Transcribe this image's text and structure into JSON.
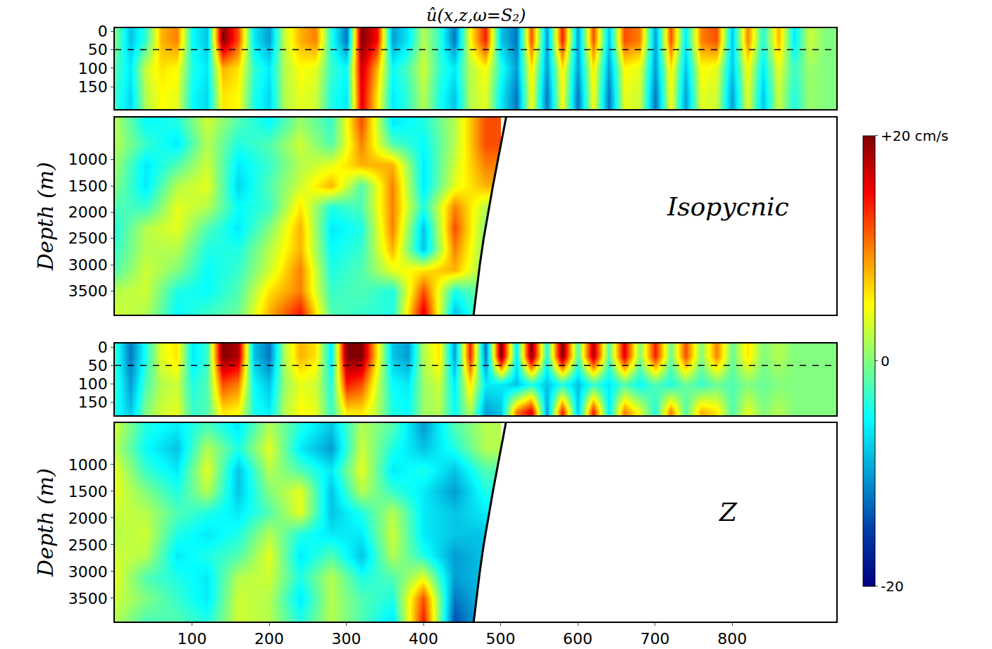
{
  "chart_data": {
    "type": "heatmap",
    "title": "û(x,z,ω=S₂)",
    "xlim": [
      0,
      935
    ],
    "xticks": [
      100,
      200,
      300,
      400,
      500,
      600,
      700,
      800
    ],
    "colorbar": {
      "range": [
        -20,
        20
      ],
      "ticks": [
        {
          "value": 20,
          "label": "+20 cm/s"
        },
        0,
        -20
      ]
    },
    "bathymetry": {
      "x": [
        507,
        503,
        497,
        490,
        484,
        478,
        473,
        469,
        465
      ],
      "depth": [
        200,
        500,
        1000,
        1500,
        2000,
        2500,
        3000,
        3500,
        3950
      ]
    },
    "panels": [
      {
        "ylim": [
          210,
          -8
        ],
        "yticks": [
          0,
          50,
          100,
          150
        ],
        "reference_depth": 50,
        "x": [
          0,
          20,
          40,
          60,
          80,
          100,
          120,
          140,
          160,
          180,
          200,
          220,
          240,
          260,
          280,
          300,
          320,
          340,
          360,
          380,
          400,
          420,
          440,
          460,
          480,
          500,
          520,
          540,
          560,
          580,
          600,
          620,
          640,
          660,
          680,
          700,
          720,
          740,
          760,
          780,
          800,
          820,
          840,
          860,
          880,
          900,
          920,
          940
        ],
        "y": [
          25,
          100,
          175
        ],
        "z": [
          [
            0,
            -8,
            -3,
            8,
            10,
            -5,
            -8,
            20,
            12,
            -6,
            -10,
            3,
            8,
            10,
            -4,
            -12,
            20,
            15,
            -10,
            -6,
            2,
            -3,
            -12,
            5,
            14,
            -8,
            -12,
            12,
            -10,
            14,
            -10,
            12,
            -8,
            12,
            10,
            -10,
            12,
            -6,
            10,
            12,
            -8,
            10,
            -4,
            8,
            -6,
            3,
            0,
            0
          ],
          [
            -2,
            -6,
            3,
            6,
            5,
            -4,
            -6,
            8,
            6,
            -3,
            -6,
            2,
            5,
            4,
            -3,
            -5,
            17,
            8,
            -5,
            -2,
            3,
            -3,
            -6,
            2,
            5,
            -4,
            -10,
            6,
            -10,
            6,
            -10,
            6,
            -10,
            5,
            4,
            -10,
            6,
            -8,
            5,
            4,
            -8,
            5,
            -6,
            4,
            -3,
            1,
            0,
            0
          ],
          [
            -3,
            -7,
            2,
            5,
            4,
            -5,
            -7,
            6,
            5,
            -4,
            -7,
            2,
            4,
            3,
            -4,
            -6,
            16,
            6,
            -6,
            -3,
            2,
            -4,
            -8,
            2,
            4,
            -6,
            -12,
            5,
            -12,
            5,
            -12,
            5,
            -12,
            4,
            3,
            -12,
            5,
            -10,
            4,
            3,
            -10,
            4,
            -8,
            3,
            -4,
            1,
            0,
            0
          ]
        ]
      },
      {
        "ylabel": "Depth (m)",
        "label": "Isopycnic",
        "ylim": [
          3950,
          200
        ],
        "yticks": [
          1000,
          1500,
          2000,
          2500,
          3000,
          3500
        ],
        "x": [
          0,
          40,
          80,
          120,
          160,
          200,
          240,
          280,
          320,
          360,
          400,
          440,
          480
        ],
        "y": [
          300,
          700,
          1100,
          1500,
          1900,
          2300,
          2700,
          3100,
          3500,
          3900
        ],
        "z": [
          [
            2,
            -5,
            -4,
            3,
            -2,
            -5,
            1,
            -3,
            12,
            -6,
            -4,
            2,
            12
          ],
          [
            2,
            -3,
            -6,
            2,
            -4,
            -2,
            3,
            -2,
            10,
            -2,
            -5,
            2,
            12
          ],
          [
            1,
            -6,
            -2,
            3,
            -6,
            -3,
            2,
            4,
            8,
            8,
            -6,
            3,
            10
          ],
          [
            0,
            -6,
            2,
            4,
            -7,
            -2,
            3,
            8,
            -2,
            10,
            -6,
            4,
            8
          ],
          [
            -2,
            -3,
            4,
            2,
            -5,
            -3,
            6,
            -4,
            -2,
            10,
            -4,
            10,
            2
          ],
          [
            -4,
            2,
            4,
            -2,
            -6,
            0,
            8,
            -6,
            -4,
            10,
            -8,
            12,
            0
          ],
          [
            -3,
            2,
            2,
            -4,
            -4,
            2,
            8,
            -5,
            -3,
            8,
            -8,
            10,
            0
          ],
          [
            -2,
            3,
            0,
            -5,
            -3,
            3,
            10,
            -4,
            -2,
            4,
            6,
            8,
            0
          ],
          [
            2,
            3,
            -4,
            -5,
            -2,
            6,
            10,
            -3,
            -2,
            -4,
            12,
            -4,
            0
          ],
          [
            3,
            2,
            -5,
            -3,
            -1,
            8,
            14,
            -2,
            -3,
            -4,
            16,
            -8,
            0
          ]
        ]
      },
      {
        "ylim": [
          185,
          -10
        ],
        "yticks": [
          0,
          50,
          100,
          150
        ],
        "reference_depth": 50,
        "x": [
          0,
          20,
          40,
          60,
          80,
          100,
          120,
          140,
          160,
          180,
          200,
          220,
          240,
          260,
          280,
          300,
          320,
          340,
          360,
          380,
          400,
          420,
          440,
          460,
          480,
          500,
          520,
          540,
          560,
          580,
          600,
          620,
          640,
          660,
          680,
          700,
          720,
          740,
          760,
          780,
          800,
          820,
          840,
          860,
          880,
          900,
          920,
          940
        ],
        "y": [
          25,
          100,
          175
        ],
        "z": [
          [
            -3,
            -12,
            -4,
            4,
            6,
            -6,
            -3,
            20,
            18,
            -8,
            -12,
            2,
            8,
            6,
            -6,
            20,
            20,
            6,
            -8,
            -10,
            2,
            6,
            -10,
            14,
            -12,
            20,
            -6,
            20,
            -4,
            20,
            -2,
            18,
            -2,
            16,
            0,
            14,
            -1,
            12,
            0,
            10,
            -1,
            6,
            0,
            2,
            0,
            0,
            0,
            0
          ],
          [
            -3,
            -10,
            -2,
            2,
            3,
            -4,
            -2,
            12,
            10,
            -5,
            -8,
            1,
            4,
            3,
            -4,
            14,
            12,
            3,
            -5,
            -6,
            1,
            3,
            -6,
            6,
            -6,
            -6,
            -8,
            -4,
            -8,
            -4,
            -8,
            -3,
            -6,
            -2,
            -5,
            -2,
            -4,
            -1,
            -3,
            -1,
            -2,
            0,
            -1,
            0,
            0,
            0,
            0,
            0
          ],
          [
            -4,
            -8,
            0,
            3,
            4,
            -3,
            -2,
            6,
            5,
            -4,
            -6,
            2,
            5,
            4,
            -3,
            6,
            6,
            2,
            -4,
            -5,
            1,
            2,
            -5,
            2,
            -10,
            -8,
            10,
            16,
            -10,
            14,
            -8,
            14,
            -6,
            10,
            4,
            -4,
            10,
            -2,
            8,
            6,
            -2,
            4,
            0,
            2,
            0,
            0,
            0,
            0
          ]
        ]
      },
      {
        "ylabel": "Depth (m)",
        "label": "Z",
        "ylim": [
          3935,
          225
        ],
        "yticks": [
          1000,
          1500,
          2000,
          2500,
          3000,
          3500
        ],
        "x": [
          0,
          40,
          80,
          120,
          160,
          200,
          240,
          280,
          320,
          360,
          400,
          440,
          480
        ],
        "y": [
          300,
          700,
          1100,
          1500,
          1900,
          2300,
          2700,
          3100,
          3500,
          3900
        ],
        "z": [
          [
            3,
            -4,
            -6,
            -2,
            -6,
            2,
            -4,
            -8,
            2,
            -2,
            -10,
            -2,
            2
          ],
          [
            2,
            -5,
            -8,
            2,
            -4,
            4,
            -6,
            -10,
            3,
            -4,
            -8,
            -4,
            2
          ],
          [
            4,
            -3,
            -6,
            4,
            -8,
            2,
            -2,
            -6,
            4,
            -6,
            -4,
            -8,
            -2
          ],
          [
            4,
            0,
            -4,
            2,
            -8,
            0,
            4,
            -8,
            2,
            -3,
            -6,
            -10,
            -4
          ],
          [
            3,
            2,
            -2,
            -4,
            -6,
            -2,
            4,
            -8,
            -4,
            2,
            -6,
            -8,
            -6
          ],
          [
            2,
            3,
            -4,
            -6,
            -4,
            2,
            -4,
            -6,
            -6,
            3,
            -6,
            -8,
            -8
          ],
          [
            3,
            2,
            -6,
            -4,
            -2,
            4,
            -6,
            -2,
            -8,
            2,
            -4,
            -10,
            -8
          ],
          [
            4,
            -2,
            -4,
            -6,
            2,
            3,
            -4,
            2,
            -4,
            -2,
            4,
            -10,
            -8
          ],
          [
            3,
            0,
            -3,
            -6,
            3,
            2,
            -6,
            2,
            -2,
            -4,
            12,
            -12,
            -8
          ],
          [
            2,
            -2,
            -2,
            -4,
            3,
            2,
            -4,
            2,
            -2,
            -6,
            14,
            -14,
            -8
          ]
        ]
      }
    ]
  }
}
